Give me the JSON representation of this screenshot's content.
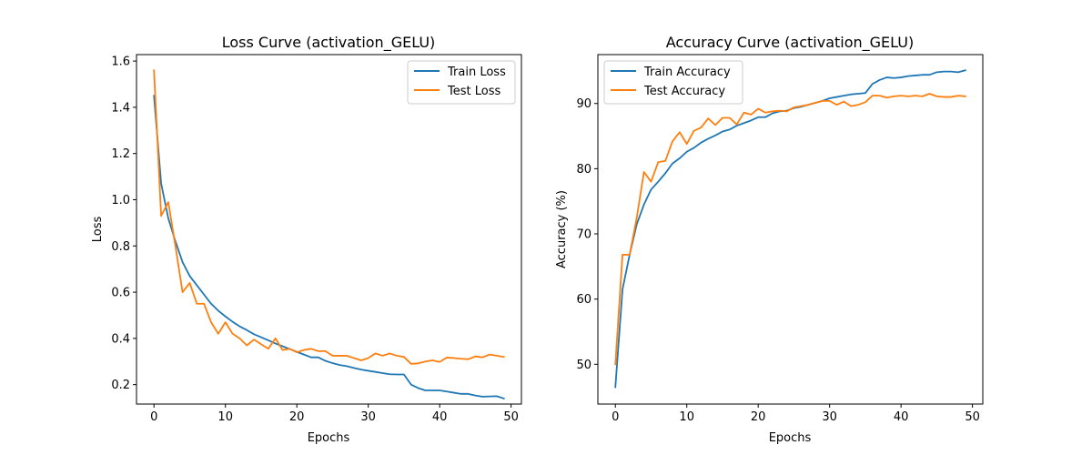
{
  "chart_data": [
    {
      "type": "line",
      "title": "Loss Curve (activation_GELU)",
      "xlabel": "Epochs",
      "ylabel": "Loss",
      "xlim": [
        -2.45,
        51.45
      ],
      "ylim": [
        0.116,
        1.628
      ],
      "xticks": [
        0,
        10,
        20,
        30,
        40,
        50
      ],
      "yticks": [
        0.2,
        0.4,
        0.6,
        0.8,
        1.0,
        1.2,
        1.4,
        1.6
      ],
      "ytick_labels": [
        "0.2",
        "0.4",
        "0.6",
        "0.8",
        "1.0",
        "1.2",
        "1.4",
        "1.6"
      ],
      "legend_position": "top-right",
      "grid": false,
      "x": [
        0,
        1,
        2,
        3,
        4,
        5,
        6,
        7,
        8,
        9,
        10,
        11,
        12,
        13,
        14,
        15,
        16,
        17,
        18,
        19,
        20,
        21,
        22,
        23,
        24,
        25,
        26,
        27,
        28,
        29,
        30,
        31,
        32,
        33,
        34,
        35,
        36,
        37,
        38,
        39,
        40,
        41,
        42,
        43,
        44,
        45,
        46,
        47,
        48,
        49
      ],
      "series": [
        {
          "name": "Train Loss",
          "color": "#1f77b4",
          "values": [
            1.45,
            1.07,
            0.92,
            0.82,
            0.73,
            0.67,
            0.63,
            0.59,
            0.55,
            0.52,
            0.495,
            0.472,
            0.452,
            0.436,
            0.418,
            0.405,
            0.392,
            0.378,
            0.366,
            0.354,
            0.342,
            0.33,
            0.318,
            0.318,
            0.303,
            0.293,
            0.285,
            0.28,
            0.272,
            0.265,
            0.26,
            0.255,
            0.25,
            0.245,
            0.244,
            0.244,
            0.2,
            0.185,
            0.175,
            0.175,
            0.175,
            0.17,
            0.165,
            0.16,
            0.16,
            0.153,
            0.148,
            0.149,
            0.15,
            0.14
          ]
        },
        {
          "name": "Test Loss",
          "color": "#ff7f0e",
          "values": [
            1.56,
            0.93,
            0.99,
            0.8,
            0.6,
            0.64,
            0.55,
            0.55,
            0.47,
            0.42,
            0.47,
            0.42,
            0.4,
            0.37,
            0.395,
            0.375,
            0.355,
            0.4,
            0.35,
            0.355,
            0.34,
            0.35,
            0.355,
            0.345,
            0.345,
            0.325,
            0.325,
            0.325,
            0.315,
            0.305,
            0.315,
            0.335,
            0.325,
            0.335,
            0.325,
            0.32,
            0.29,
            0.292,
            0.3,
            0.305,
            0.298,
            0.317,
            0.315,
            0.312,
            0.31,
            0.322,
            0.318,
            0.33,
            0.325,
            0.32
          ]
        }
      ]
    },
    {
      "type": "line",
      "title": "Accuracy Curve (activation_GELU)",
      "xlabel": "Epochs",
      "ylabel": "Accuracy (%)",
      "xlim": [
        -2.45,
        51.45
      ],
      "ylim": [
        43.9,
        97.5
      ],
      "xticks": [
        0,
        10,
        20,
        30,
        40,
        50
      ],
      "yticks": [
        50,
        60,
        70,
        80,
        90
      ],
      "ytick_labels": [
        "50",
        "60",
        "70",
        "80",
        "90"
      ],
      "legend_position": "top-left",
      "grid": false,
      "x": [
        0,
        1,
        2,
        3,
        4,
        5,
        6,
        7,
        8,
        9,
        10,
        11,
        12,
        13,
        14,
        15,
        16,
        17,
        18,
        19,
        20,
        21,
        22,
        23,
        24,
        25,
        26,
        27,
        28,
        29,
        30,
        31,
        32,
        33,
        34,
        35,
        36,
        37,
        38,
        39,
        40,
        41,
        42,
        43,
        44,
        45,
        46,
        47,
        48,
        49
      ],
      "series": [
        {
          "name": "Train Accuracy",
          "color": "#1f77b4",
          "values": [
            46.5,
            61.5,
            66.8,
            71.5,
            74.5,
            76.8,
            78.0,
            79.3,
            80.8,
            81.6,
            82.6,
            83.2,
            84.0,
            84.6,
            85.1,
            85.7,
            86.0,
            86.6,
            87.0,
            87.4,
            87.9,
            87.9,
            88.5,
            88.8,
            88.9,
            89.3,
            89.5,
            89.8,
            90.1,
            90.4,
            90.8,
            91.0,
            91.2,
            91.4,
            91.5,
            91.6,
            93.0,
            93.6,
            94.0,
            93.9,
            94.0,
            94.2,
            94.3,
            94.4,
            94.4,
            94.8,
            94.9,
            94.9,
            94.8,
            95.1
          ]
        },
        {
          "name": "Test Accuracy",
          "color": "#ff7f0e",
          "values": [
            50.0,
            66.8,
            66.8,
            72.5,
            79.5,
            78.0,
            81.0,
            81.2,
            84.2,
            85.6,
            83.8,
            85.8,
            86.3,
            87.7,
            86.7,
            87.8,
            87.8,
            86.8,
            88.6,
            88.3,
            89.2,
            88.6,
            88.8,
            88.9,
            88.8,
            89.4,
            89.6,
            89.8,
            90.1,
            90.4,
            90.4,
            89.8,
            90.3,
            89.6,
            89.8,
            90.2,
            91.2,
            91.2,
            90.9,
            91.1,
            91.2,
            91.1,
            91.2,
            91.1,
            91.5,
            91.1,
            91.0,
            91.0,
            91.2,
            91.1
          ]
        }
      ]
    }
  ]
}
